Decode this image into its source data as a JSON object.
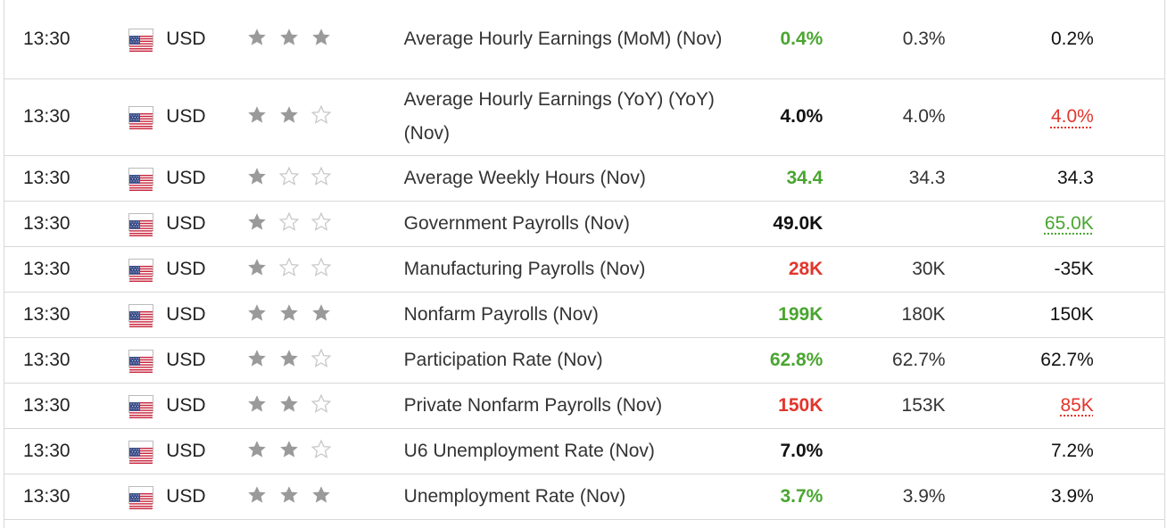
{
  "rows": [
    {
      "time": "13:30",
      "currency": "USD",
      "stars": 3,
      "event": "Average Hourly Earnings (MoM) (Nov)",
      "actual": "0.4%",
      "actual_color": "green",
      "forecast": "0.3%",
      "previous": "0.2%",
      "previous_style": "normal"
    },
    {
      "time": "13:30",
      "currency": "USD",
      "stars": 2,
      "event": "Average Hourly Earnings (YoY) (YoY) (Nov)",
      "actual": "4.0%",
      "actual_color": "black",
      "forecast": "4.0%",
      "previous": "4.0%",
      "previous_style": "rev-red"
    },
    {
      "time": "13:30",
      "currency": "USD",
      "stars": 1,
      "event": "Average Weekly Hours (Nov)",
      "actual": "34.4",
      "actual_color": "green",
      "forecast": "34.3",
      "previous": "34.3",
      "previous_style": "normal"
    },
    {
      "time": "13:30",
      "currency": "USD",
      "stars": 1,
      "event": "Government Payrolls (Nov)",
      "actual": "49.0K",
      "actual_color": "black",
      "forecast": "",
      "previous": "65.0K",
      "previous_style": "rev-green"
    },
    {
      "time": "13:30",
      "currency": "USD",
      "stars": 1,
      "event": "Manufacturing Payrolls (Nov)",
      "actual": "28K",
      "actual_color": "red",
      "forecast": "30K",
      "previous": "-35K",
      "previous_style": "normal"
    },
    {
      "time": "13:30",
      "currency": "USD",
      "stars": 3,
      "event": "Nonfarm Payrolls (Nov)",
      "actual": "199K",
      "actual_color": "green",
      "forecast": "180K",
      "previous": "150K",
      "previous_style": "normal"
    },
    {
      "time": "13:30",
      "currency": "USD",
      "stars": 2,
      "event": "Participation Rate (Nov)",
      "actual": "62.8%",
      "actual_color": "green",
      "forecast": "62.7%",
      "previous": "62.7%",
      "previous_style": "normal"
    },
    {
      "time": "13:30",
      "currency": "USD",
      "stars": 2,
      "event": "Private Nonfarm Payrolls (Nov)",
      "actual": "150K",
      "actual_color": "red",
      "forecast": "153K",
      "previous": "85K",
      "previous_style": "rev-red"
    },
    {
      "time": "13:30",
      "currency": "USD",
      "stars": 2,
      "event": "U6 Unemployment Rate (Nov)",
      "actual": "7.0%",
      "actual_color": "black",
      "forecast": "",
      "previous": "7.2%",
      "previous_style": "normal"
    },
    {
      "time": "13:30",
      "currency": "USD",
      "stars": 3,
      "event": "Unemployment Rate (Nov)",
      "actual": "3.7%",
      "actual_color": "green",
      "forecast": "3.9%",
      "previous": "3.9%",
      "previous_style": "normal"
    }
  ],
  "colors": {
    "green": "#4aa530",
    "red": "#e3352c",
    "star_filled": "#9a9a9a",
    "star_empty": "#c8c8c8"
  },
  "icons": {
    "flag": "us-flag-icon",
    "star_full": "star-filled-icon",
    "star_empty": "star-outline-icon"
  }
}
